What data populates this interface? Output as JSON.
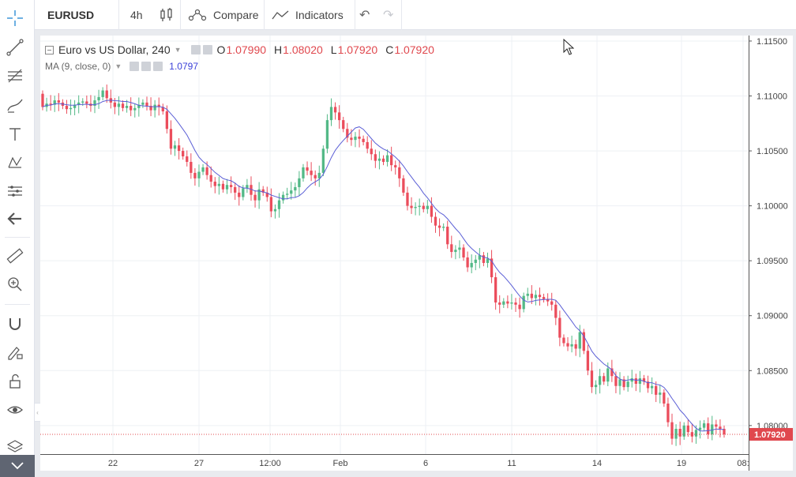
{
  "toolbar": {
    "symbol": "EURUSD",
    "interval": "4h",
    "compare_label": "Compare",
    "indicators_label": "Indicators"
  },
  "legend": {
    "title": "Euro vs US Dollar, 240",
    "o_label": "O",
    "o_value": "1.07990",
    "h_label": "H",
    "h_value": "1.08020",
    "l_label": "L",
    "l_value": "1.07920",
    "c_label": "C",
    "c_value": "1.07920",
    "ma_label": "MA (9, close, 0)",
    "ma_value": "1.0797"
  },
  "colors": {
    "up": "#53b987",
    "down": "#eb4d5c",
    "ma": "#5b5fd6",
    "price_label_bg": "#e0484e",
    "grid": "#eef0f4"
  },
  "chart_data": {
    "type": "candlestick",
    "series_count_approx": 180,
    "ylim": [
      1.0774,
      1.1155
    ],
    "y_ticks": [
      "1.11500",
      "1.11000",
      "1.10500",
      "1.10000",
      "1.09500",
      "1.09000",
      "1.08500",
      "1.08000"
    ],
    "x_ticks": [
      "22",
      "27",
      "12:00",
      "Feb",
      "6",
      "11",
      "14",
      "19",
      "08:"
    ],
    "current_price": "1.07920",
    "closes": [
      1.109,
      1.1093,
      1.1092,
      1.1096,
      1.1094,
      1.1091,
      1.1088,
      1.1089,
      1.1092,
      1.1094,
      1.1095,
      1.1093,
      1.1091,
      1.1096,
      1.1099,
      1.1105,
      1.1098,
      1.1094,
      1.109,
      1.1093,
      1.1089,
      1.1091,
      1.1087,
      1.1089,
      1.1092,
      1.1094,
      1.1091,
      1.1087,
      1.1092,
      1.109,
      1.1086,
      1.107,
      1.1052,
      1.1055,
      1.105,
      1.1045,
      1.104,
      1.103,
      1.1025,
      1.1031,
      1.1035,
      1.1028,
      1.1022,
      1.1018,
      1.102,
      1.1015,
      1.1019,
      1.1017,
      1.1012,
      1.1008,
      1.1016,
      1.1019,
      1.101,
      1.1005,
      1.1015,
      1.1012,
      1.1008,
      1.0995,
      1.0997,
      1.1005,
      1.101,
      1.1011,
      1.1014,
      1.1017,
      1.1025,
      1.1035,
      1.1032,
      1.1028,
      1.1025,
      1.103,
      1.1052,
      1.1078,
      1.109,
      1.1085,
      1.1078,
      1.107,
      1.1062,
      1.106,
      1.1063,
      1.1061,
      1.1058,
      1.1052,
      1.1047,
      1.1041,
      1.1043,
      1.104,
      1.1046,
      1.1037,
      1.1035,
      1.1025,
      1.1012,
      1.1,
      1.0998,
      1.0999,
      1.1,
      1.0997,
      1.1,
      1.099,
      1.0982,
      1.098,
      1.0981,
      1.0965,
      1.0958,
      1.096,
      1.0962,
      1.0953,
      1.0944,
      1.0948,
      1.0951,
      1.0955,
      1.0948,
      1.0952,
      1.0935,
      1.0912,
      1.091,
      1.0913,
      1.0911,
      1.0912,
      1.091,
      1.0906,
      1.0918,
      1.092,
      1.0916,
      1.0919,
      1.0917,
      1.0915,
      1.0913,
      1.091,
      1.0898,
      1.088,
      1.0875,
      1.0872,
      1.0874,
      1.087,
      1.0885,
      1.0868,
      1.085,
      1.0835,
      1.0837,
      1.0845,
      1.084,
      1.0852,
      1.0845,
      1.0836,
      1.0842,
      1.0835,
      1.084,
      1.0843,
      1.0838,
      1.0843,
      1.084,
      1.0834,
      1.0836,
      1.0828,
      1.083,
      1.082,
      1.0803,
      1.0788,
      1.0797,
      1.079,
      1.08,
      1.0794,
      1.079,
      1.0796,
      1.0798,
      1.0802,
      1.0792,
      1.0801,
      1.0799,
      1.0797,
      1.0792
    ]
  }
}
